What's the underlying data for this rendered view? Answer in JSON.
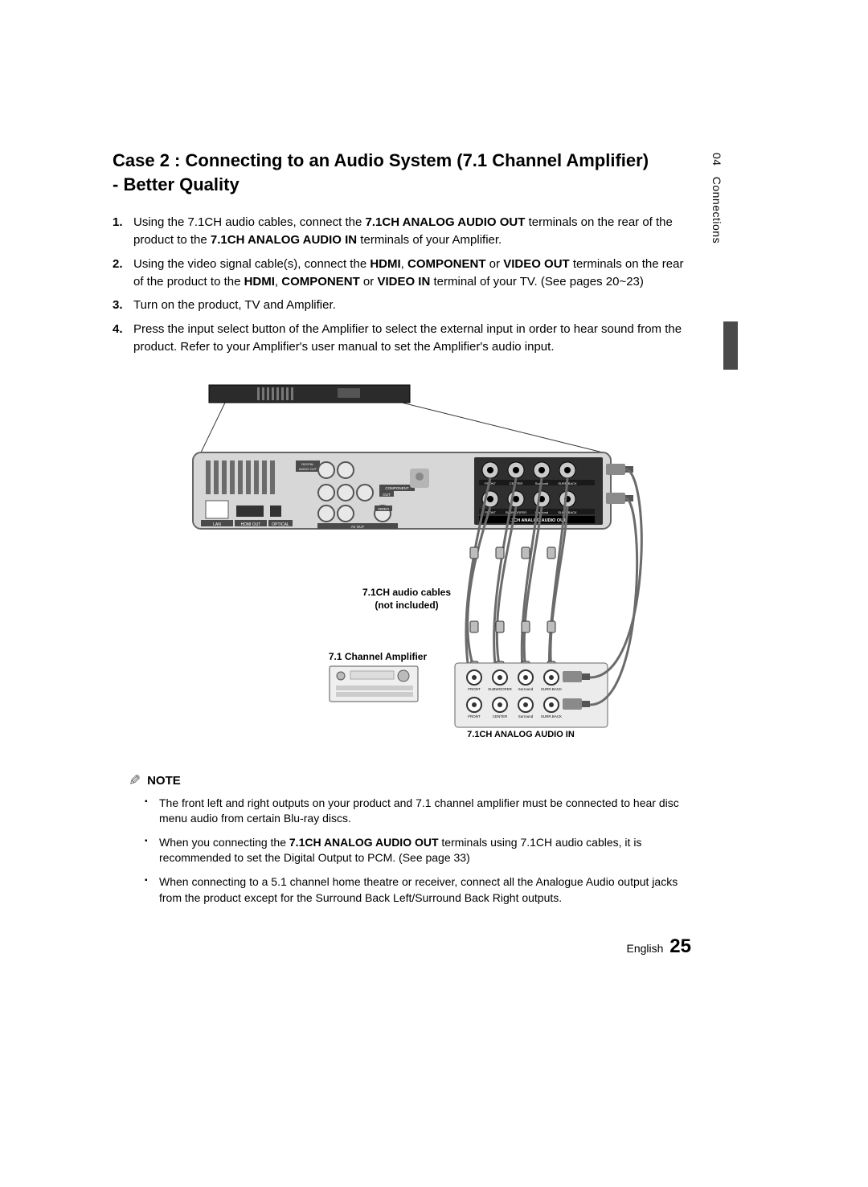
{
  "title_line1": "Case 2 : Connecting to an Audio System (7.1 Channel Amplifier)",
  "title_line2": "- Better Quality",
  "steps": [
    {
      "num": "1.",
      "html": "Using the 7.1CH audio cables, connect the <b>7.1CH ANALOG AUDIO OUT</b> terminals on the rear of the product to the <b>7.1CH ANALOG AUDIO IN</b> terminals of your Amplifier."
    },
    {
      "num": "2.",
      "html": "Using the video signal cable(s), connect the <b>HDMI</b>, <b>COMPONENT</b> or <b>VIDEO OUT</b> terminals on the rear of the product to the <b>HDMI</b>, <b>COMPONENT</b> or <b>VIDEO IN</b> terminal of your TV. (See pages 20~23)"
    },
    {
      "num": "3.",
      "html": "Turn on the product, TV and Amplifier."
    },
    {
      "num": "4.",
      "html": "Press the input select button of the Amplifier to select the external input in order to hear sound from the product. Refer to your Amplifier's user manual to set the Amplifier's audio input."
    }
  ],
  "diagram": {
    "cable_label_line1": "7.1CH audio cables",
    "cable_label_line2": "(not included)",
    "amp_label": "7.1 Channel Amplifier",
    "audio_in_label": "7.1CH ANALOG AUDIO IN",
    "audio_out_label": "7.1CH ANALOG AUDIO OUT",
    "panel_labels": {
      "lan": "LAN",
      "hdmi": "HDMI OUT",
      "optical": "OPTICAL",
      "digital": "DIGITAL AUDIO OUT",
      "component": "COMPONENT OUT",
      "avout": "AV OUT",
      "video": "VIDEO"
    },
    "jack_rows": {
      "top": [
        "FRONT",
        "CENTER",
        "Surround",
        "SURR.BACK"
      ],
      "bottom": [
        "FRONT",
        "SUBWOOFER",
        "Surround",
        "SURR.BACK"
      ]
    },
    "colors": {
      "panel_fill": "#d7d7d7",
      "panel_stroke": "#666666",
      "dark": "#3a3a3a",
      "mid": "#888888",
      "light": "#e8e8e8",
      "cable": "#6b6b6b",
      "text": "#000000",
      "white": "#ffffff"
    }
  },
  "note": {
    "header": "NOTE",
    "items": [
      "The front left and right outputs on your product and 7.1 channel amplifier must be connected to hear disc menu audio from certain Blu-ray discs.",
      "When you connecting the <b>7.1CH ANALOG AUDIO OUT</b> terminals using 7.1CH audio cables, it is recommended to set the Digital Output to PCM. (See page 33)",
      "When connecting to a 5.1 channel home theatre or receiver, connect all the Analogue Audio output jacks from the product except for the Surround Back Left/Surround Back Right outputs."
    ]
  },
  "sidetab": {
    "chapter": "04",
    "name": "Connections"
  },
  "footer": {
    "lang": "English",
    "page": "25"
  }
}
